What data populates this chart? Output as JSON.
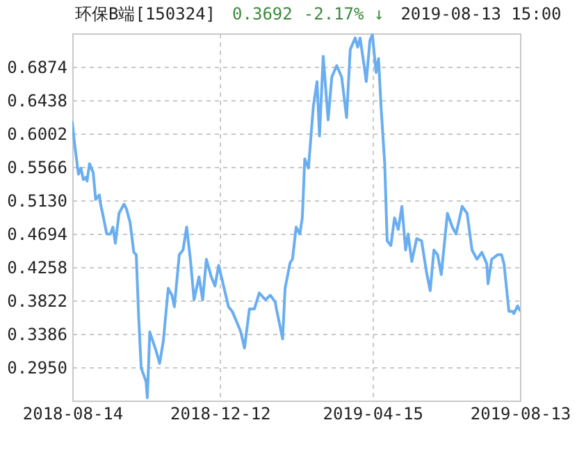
{
  "chart_data": {
    "type": "line",
    "title": "环保B端[150324]",
    "annotations": [
      "0.3692",
      "-2.17% ↓",
      "2019-08-13 15:00"
    ],
    "x": [
      "2018-08-14",
      "2018-08-16",
      "2018-08-19",
      "2018-08-21",
      "2018-08-23",
      "2018-08-25",
      "2018-08-26",
      "2018-08-28",
      "2018-08-31",
      "2018-09-02",
      "2018-09-05",
      "2018-09-06",
      "2018-09-08",
      "2018-09-11",
      "2018-09-14",
      "2018-09-16",
      "2018-09-18",
      "2018-09-21",
      "2018-09-25",
      "2018-09-27",
      "2018-09-30",
      "2018-10-03",
      "2018-10-05",
      "2018-10-07",
      "2018-10-09",
      "2018-10-13",
      "2018-10-14",
      "2018-10-16",
      "2018-10-21",
      "2018-10-24",
      "2018-10-27",
      "2018-10-31",
      "2018-11-03",
      "2018-11-05",
      "2018-11-09",
      "2018-11-12",
      "2018-11-15",
      "2018-11-18",
      "2018-11-21",
      "2018-11-25",
      "2018-11-28",
      "2018-12-01",
      "2018-12-05",
      "2018-12-08",
      "2018-12-11",
      "2018-12-15",
      "2018-12-19",
      "2018-12-22",
      "2018-12-26",
      "2018-12-29",
      "2019-01-01",
      "2019-01-05",
      "2019-01-09",
      "2019-01-13",
      "2019-01-18",
      "2019-01-22",
      "2019-01-26",
      "2019-01-27",
      "2019-02-01",
      "2019-02-03",
      "2019-02-07",
      "2019-02-09",
      "2019-02-12",
      "2019-02-15",
      "2019-02-17",
      "2019-02-19",
      "2019-02-22",
      "2019-02-26",
      "2019-03-01",
      "2019-03-03",
      "2019-03-06",
      "2019-03-10",
      "2019-03-13",
      "2019-03-17",
      "2019-03-21",
      "2019-03-25",
      "2019-03-28",
      "2019-04-01",
      "2019-04-03",
      "2019-04-05",
      "2019-04-08",
      "2019-04-10",
      "2019-04-13",
      "2019-04-15",
      "2019-04-18",
      "2019-04-20",
      "2019-04-22",
      "2019-04-25",
      "2019-04-27",
      "2019-04-30",
      "2019-05-03",
      "2019-05-06",
      "2019-05-09",
      "2019-05-12",
      "2019-05-14",
      "2019-05-17",
      "2019-05-21",
      "2019-05-25",
      "2019-05-29",
      "2019-06-01",
      "2019-06-04",
      "2019-06-07",
      "2019-06-10",
      "2019-06-15",
      "2019-06-19",
      "2019-06-22",
      "2019-06-27",
      "2019-07-01",
      "2019-07-05",
      "2019-07-09",
      "2019-07-13",
      "2019-07-17",
      "2019-07-18",
      "2019-07-21",
      "2019-07-26",
      "2019-07-29",
      "2019-07-31",
      "2019-08-04",
      "2019-08-07",
      "2019-08-08",
      "2019-08-11",
      "2019-08-13"
    ],
    "series": [
      {
        "color": "#6aaef0",
        "values": [
          0.615,
          0.585,
          0.547,
          0.555,
          0.54,
          0.543,
          0.538,
          0.561,
          0.549,
          0.514,
          0.52,
          0.508,
          0.493,
          0.469,
          0.469,
          0.478,
          0.457,
          0.496,
          0.508,
          0.502,
          0.484,
          0.445,
          0.442,
          0.359,
          0.294,
          0.276,
          0.255,
          0.341,
          0.317,
          0.3,
          0.329,
          0.398,
          0.389,
          0.374,
          0.442,
          0.448,
          0.478,
          0.436,
          0.383,
          0.413,
          0.383,
          0.436,
          0.413,
          0.401,
          0.428,
          0.401,
          0.374,
          0.368,
          0.353,
          0.341,
          0.32,
          0.371,
          0.371,
          0.392,
          0.383,
          0.389,
          0.38,
          0.371,
          0.332,
          0.398,
          0.431,
          0.436,
          0.478,
          0.469,
          0.49,
          0.567,
          0.555,
          0.636,
          0.668,
          0.597,
          0.701,
          0.618,
          0.674,
          0.689,
          0.674,
          0.621,
          0.71,
          0.725,
          0.713,
          0.725,
          0.692,
          0.668,
          0.722,
          0.729,
          0.68,
          0.698,
          0.636,
          0.561,
          0.46,
          0.454,
          0.49,
          0.475,
          0.505,
          0.448,
          0.469,
          0.433,
          0.463,
          0.46,
          0.419,
          0.395,
          0.448,
          0.442,
          0.416,
          0.496,
          0.478,
          0.469,
          0.505,
          0.496,
          0.448,
          0.436,
          0.445,
          0.43,
          0.404,
          0.436,
          0.442,
          0.442,
          0.43,
          0.368,
          0.368,
          0.365,
          0.375,
          0.3692
        ]
      }
    ],
    "xlim": [
      "2018-08-14",
      "2019-08-13"
    ],
    "xticks": [
      "2018-08-14",
      "2018-12-12",
      "2019-04-15",
      "2019-08-13"
    ],
    "ylim": [
      0.2514,
      0.731
    ],
    "yticks": [
      {
        "value": 0.295,
        "label": "0.2950"
      },
      {
        "value": 0.3386,
        "label": "0.3386"
      },
      {
        "value": 0.3822,
        "label": "0.3822"
      },
      {
        "value": 0.4258,
        "label": "0.4258"
      },
      {
        "value": 0.4694,
        "label": "0.4694"
      },
      {
        "value": 0.513,
        "label": "0.5130"
      },
      {
        "value": 0.5566,
        "label": "0.5566"
      },
      {
        "value": 0.6002,
        "label": "0.6002"
      },
      {
        "value": 0.6438,
        "label": "0.6438"
      },
      {
        "value": 0.6874,
        "label": "0.6874"
      }
    ],
    "grid": true
  }
}
